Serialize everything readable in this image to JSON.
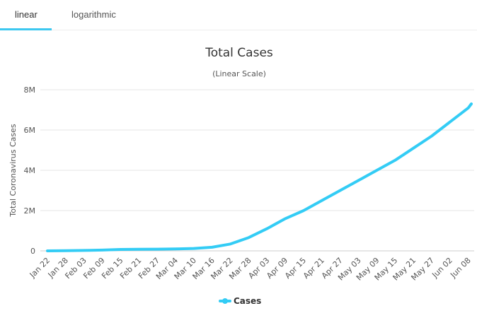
{
  "tabs": [
    {
      "label": "linear",
      "active": true
    },
    {
      "label": "logarithmic",
      "active": false
    }
  ],
  "chart_data": {
    "type": "line",
    "title": "Total Cases",
    "subtitle": "(Linear Scale)",
    "ylabel": "Total Coronavirus Cases",
    "xlabel": "",
    "ylim": [
      0,
      8000000
    ],
    "yticks": [
      {
        "v": 0,
        "label": "0"
      },
      {
        "v": 2000000,
        "label": "2M"
      },
      {
        "v": 4000000,
        "label": "4M"
      },
      {
        "v": 6000000,
        "label": "6M"
      },
      {
        "v": 8000000,
        "label": "8M"
      }
    ],
    "xticks": [
      "Jan 22",
      "Jan 28",
      "Feb 03",
      "Feb 09",
      "Feb 15",
      "Feb 21",
      "Feb 27",
      "Mar 04",
      "Mar 10",
      "Mar 16",
      "Mar 22",
      "Mar 28",
      "Apr 03",
      "Apr 09",
      "Apr 15",
      "Apr 21",
      "Apr 27",
      "May 03",
      "May 09",
      "May 15",
      "May 21",
      "May 27",
      "Jun 02",
      "Jun 08"
    ],
    "xlim_days": [
      0,
      139
    ],
    "grid": true,
    "legend_position": "bottom",
    "series": [
      {
        "name": "Cases",
        "color": "#33ccf5",
        "x": [
          0,
          6,
          12,
          18,
          24,
          30,
          36,
          42,
          48,
          54,
          60,
          66,
          72,
          78,
          84,
          90,
          96,
          102,
          108,
          114,
          120,
          126,
          132,
          138,
          139
        ],
        "values": [
          600,
          6000,
          20000,
          40000,
          70000,
          77000,
          84000,
          95000,
          120000,
          180000,
          340000,
          660000,
          1100000,
          1600000,
          2000000,
          2500000,
          3000000,
          3500000,
          4000000,
          4500000,
          5100000,
          5700000,
          6400000,
          7100000,
          7300000
        ]
      }
    ]
  }
}
